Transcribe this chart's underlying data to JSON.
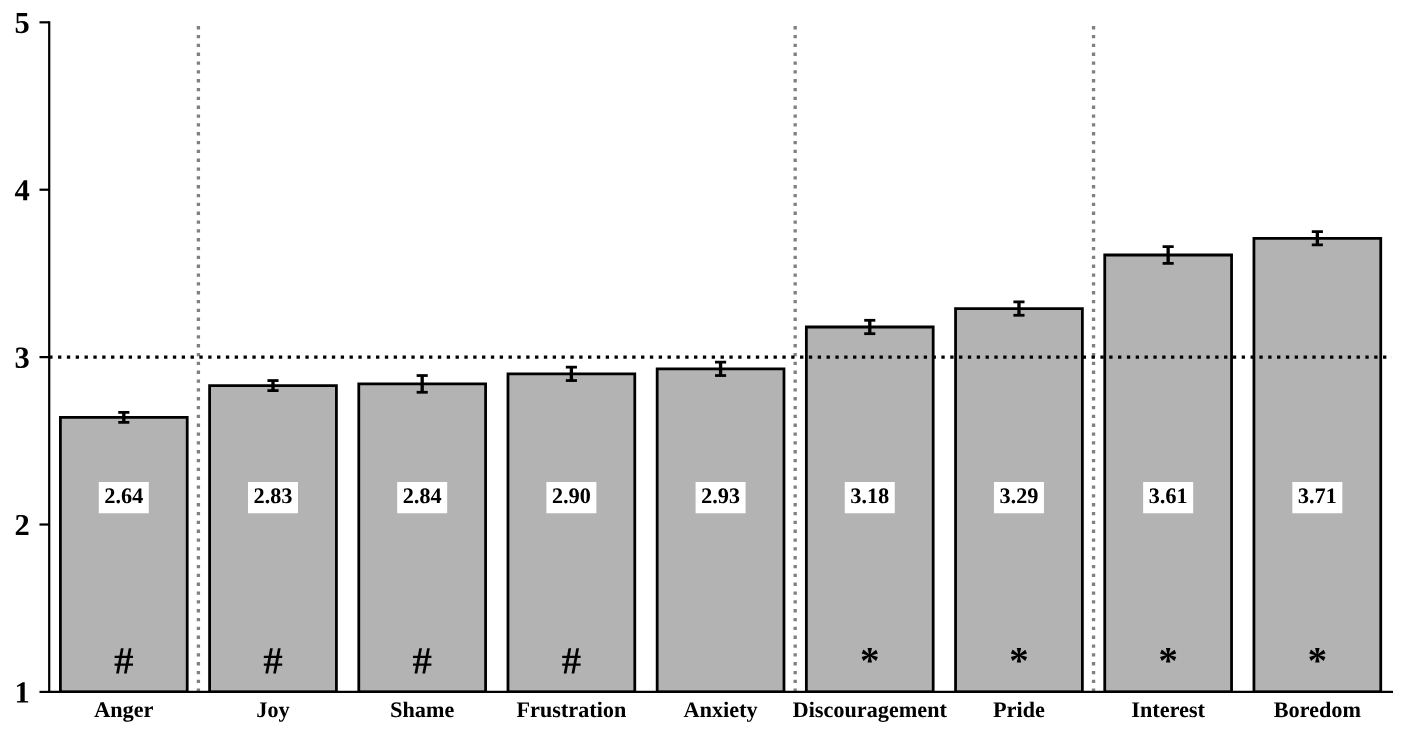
{
  "chart_data": {
    "type": "bar",
    "categories": [
      "Anger",
      "Joy",
      "Shame",
      "Frustration",
      "Anxiety",
      "Discouragement",
      "Pride",
      "Interest",
      "Boredom"
    ],
    "values": [
      2.64,
      2.83,
      2.84,
      2.9,
      2.93,
      3.18,
      3.29,
      3.61,
      3.71
    ],
    "value_labels": [
      "2.64",
      "2.83",
      "2.84",
      "2.90",
      "2.93",
      "3.18",
      "3.29",
      "3.61",
      "3.71"
    ],
    "errors": [
      0.03,
      0.03,
      0.05,
      0.04,
      0.04,
      0.04,
      0.04,
      0.05,
      0.04
    ],
    "color": "#b3b3b3",
    "ylim": [
      1,
      5
    ],
    "yticks": [
      1,
      2,
      3,
      4,
      5
    ],
    "grid": false,
    "ref_lines": [
      {
        "axis": "y",
        "value": 3,
        "line_style": "dotted",
        "color": "#000000"
      }
    ],
    "annotations": [
      "#",
      "#",
      "#",
      "#",
      "*",
      "*",
      "*",
      "*"
    ]
  }
}
